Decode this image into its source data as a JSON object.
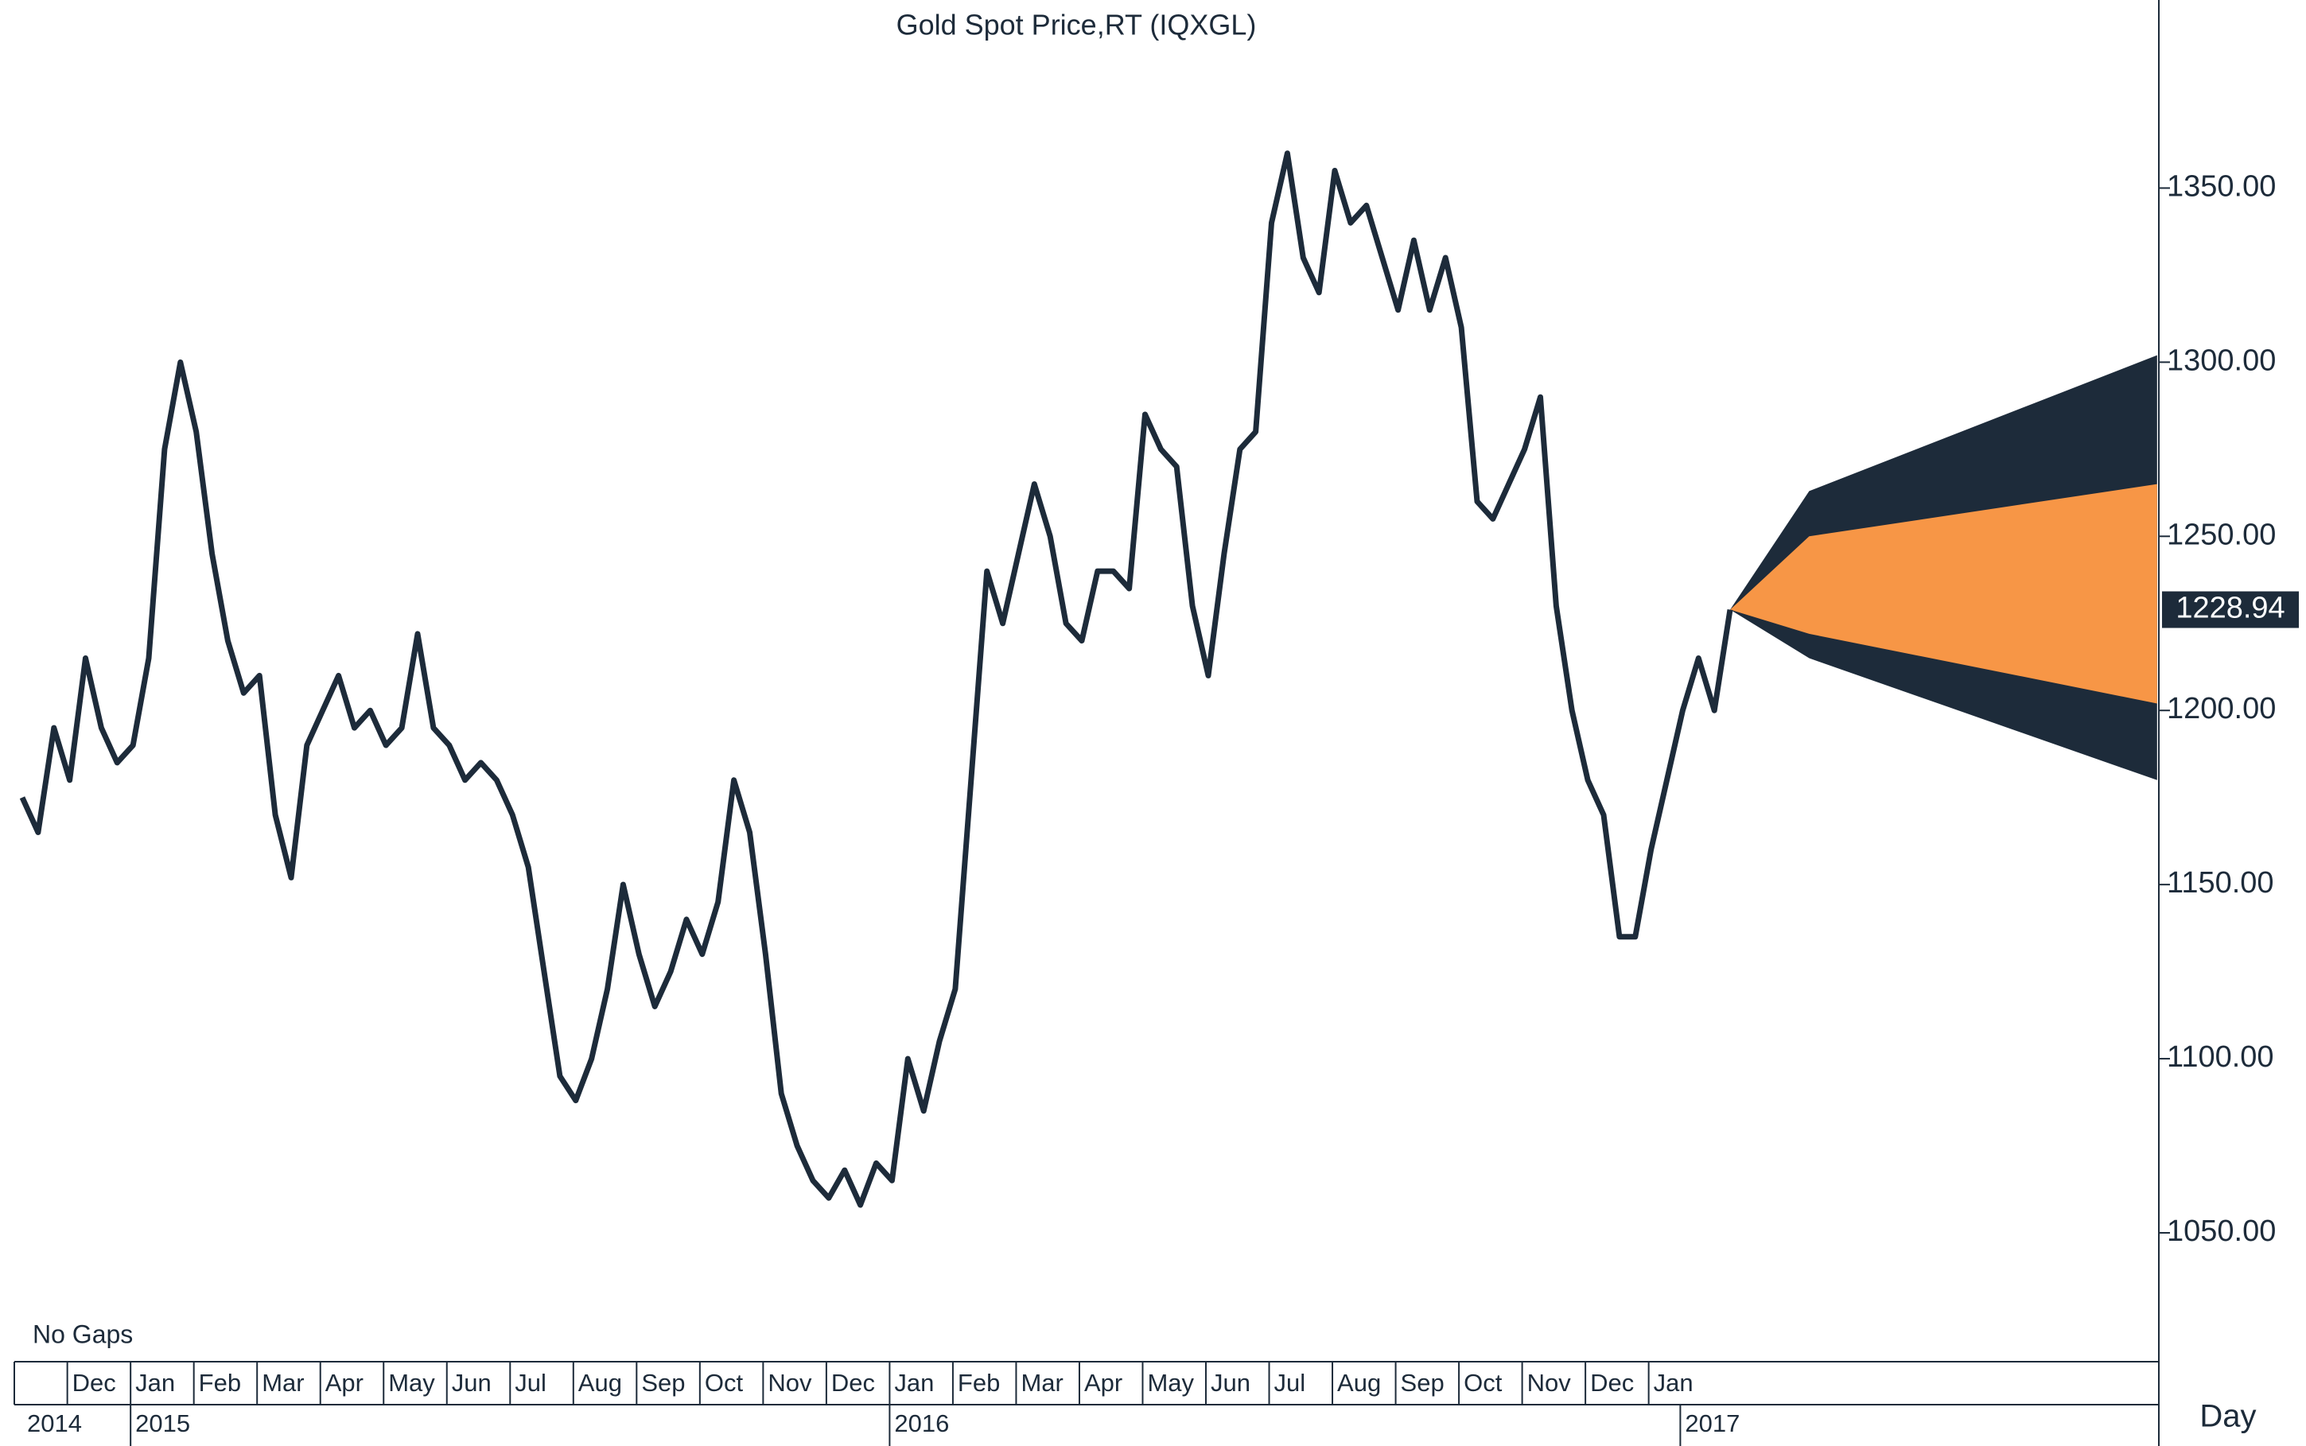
{
  "chart_data": {
    "type": "line",
    "title": "Gold Spot Price,RT (IQXGL)",
    "note": "No Gaps",
    "x_axis_label": "Day",
    "categories": [
      null,
      null,
      null,
      "Dec",
      null,
      null,
      null,
      "Jan",
      null,
      null,
      null,
      "Feb",
      null,
      null,
      null,
      "Mar",
      null,
      null,
      null,
      "Apr",
      null,
      null,
      null,
      "May",
      null,
      null,
      null,
      "Jun",
      null,
      null,
      null,
      "Jul",
      null,
      null,
      null,
      "Aug",
      null,
      null,
      null,
      "Sep",
      null,
      null,
      null,
      "Oct",
      null,
      null,
      null,
      "Nov",
      null,
      null,
      null,
      "Dec",
      null,
      null,
      null,
      "Jan",
      null,
      null,
      null,
      "Feb",
      null,
      null,
      null,
      "Mar",
      null,
      null,
      null,
      "Apr",
      null,
      null,
      null,
      "May",
      null,
      null,
      null,
      "Jun",
      null,
      null,
      null,
      "Jul",
      null,
      null,
      null,
      "Aug",
      null,
      null,
      null,
      "Sep",
      null,
      null,
      null,
      "Oct",
      null,
      null,
      null,
      "Nov",
      null,
      null,
      null,
      "Dec",
      null,
      null,
      null,
      "Jan",
      null,
      null,
      null,
      null,
      null,
      null,
      null,
      null,
      null,
      null,
      null,
      null,
      null,
      null,
      null,
      null,
      null,
      null,
      null,
      null,
      null,
      null,
      null,
      null,
      null,
      null,
      null,
      null,
      null,
      null,
      null,
      null
    ],
    "years": [
      "2014",
      null,
      null,
      null,
      null,
      null,
      null,
      "2015",
      null,
      null,
      null,
      null,
      null,
      null,
      null,
      null,
      null,
      null,
      null,
      null,
      null,
      null,
      null,
      null,
      null,
      null,
      null,
      null,
      null,
      null,
      null,
      null,
      null,
      null,
      null,
      null,
      null,
      null,
      null,
      null,
      null,
      null,
      null,
      null,
      null,
      null,
      null,
      null,
      null,
      null,
      null,
      null,
      null,
      null,
      null,
      "2016",
      null,
      null,
      null,
      null,
      null,
      null,
      null,
      null,
      null,
      null,
      null,
      null,
      null,
      null,
      null,
      null,
      null,
      null,
      null,
      null,
      null,
      null,
      null,
      null,
      null,
      null,
      null,
      null,
      null,
      null,
      null,
      null,
      null,
      null,
      null,
      null,
      null,
      null,
      null,
      null,
      null,
      null,
      null,
      null,
      null,
      null,
      null,
      null,
      null,
      "2017",
      null,
      null,
      null,
      null,
      null,
      null,
      null,
      null,
      null,
      null,
      null,
      null,
      null,
      null,
      null,
      null,
      null,
      null,
      null,
      null,
      null,
      null,
      null,
      null,
      null,
      null,
      null,
      null,
      null,
      null,
      null,
      null
    ],
    "series": [
      {
        "color": "#1d2b3a",
        "values": [
          1175,
          1165,
          1195,
          1180,
          1215,
          1195,
          1185,
          1190,
          1215,
          1275,
          1300,
          1280,
          1245,
          1220,
          1205,
          1210,
          1170,
          1152,
          1190,
          1200,
          1210,
          1195,
          1200,
          1190,
          1195,
          1222,
          1195,
          1190,
          1180,
          1185,
          1180,
          1170,
          1155,
          1125,
          1095,
          1088,
          1100,
          1120,
          1150,
          1130,
          1115,
          1125,
          1140,
          1130,
          1145,
          1180,
          1165,
          1130,
          1090,
          1075,
          1065,
          1060,
          1068,
          1058,
          1070,
          1065,
          1100,
          1085,
          1105,
          1120,
          1180,
          1240,
          1225,
          1245,
          1265,
          1250,
          1225,
          1220,
          1240,
          1240,
          1235,
          1285,
          1275,
          1270,
          1230,
          1210,
          1245,
          1275,
          1280,
          1340,
          1360,
          1330,
          1320,
          1355,
          1340,
          1345,
          1330,
          1315,
          1335,
          1315,
          1330,
          1310,
          1260,
          1255,
          1265,
          1275,
          1290,
          1230,
          1200,
          1180,
          1170,
          1135,
          1135,
          1160,
          1180,
          1200,
          1215,
          1200,
          1228.94,
          null,
          null,
          null,
          null,
          null,
          null,
          null,
          null,
          null,
          null,
          null,
          null,
          null,
          null,
          null,
          null,
          null,
          null,
          null,
          null,
          null,
          null,
          null,
          null,
          null,
          null,
          null
        ]
      }
    ],
    "bands": [
      {
        "color": "#1d2b3a",
        "upper": [
          null,
          null,
          null,
          null,
          null,
          null,
          null,
          null,
          null,
          null,
          null,
          null,
          null,
          null,
          null,
          null,
          null,
          null,
          null,
          null,
          null,
          null,
          null,
          null,
          null,
          null,
          null,
          null,
          null,
          null,
          null,
          null,
          null,
          null,
          null,
          null,
          null,
          null,
          null,
          null,
          null,
          null,
          null,
          null,
          null,
          null,
          null,
          null,
          null,
          null,
          null,
          null,
          null,
          null,
          null,
          null,
          null,
          null,
          null,
          null,
          null,
          null,
          null,
          null,
          null,
          null,
          null,
          null,
          null,
          null,
          null,
          null,
          null,
          null,
          null,
          null,
          null,
          null,
          null,
          null,
          null,
          null,
          null,
          null,
          null,
          null,
          null,
          null,
          null,
          null,
          null,
          null,
          null,
          null,
          null,
          null,
          null,
          null,
          null,
          null,
          null,
          null,
          null,
          null,
          null,
          null,
          null,
          null,
          1228.94,
          null,
          null,
          null,
          null,
          1263,
          null,
          null,
          null,
          null,
          null,
          null,
          null,
          null,
          null,
          null,
          null,
          null,
          null,
          null,
          null,
          null,
          null,
          null,
          null,
          null,
          null,
          1302
        ],
        "lower": [
          null,
          null,
          null,
          null,
          null,
          null,
          null,
          null,
          null,
          null,
          null,
          null,
          null,
          null,
          null,
          null,
          null,
          null,
          null,
          null,
          null,
          null,
          null,
          null,
          null,
          null,
          null,
          null,
          null,
          null,
          null,
          null,
          null,
          null,
          null,
          null,
          null,
          null,
          null,
          null,
          null,
          null,
          null,
          null,
          null,
          null,
          null,
          null,
          null,
          null,
          null,
          null,
          null,
          null,
          null,
          null,
          null,
          null,
          null,
          null,
          null,
          null,
          null,
          null,
          null,
          null,
          null,
          null,
          null,
          null,
          null,
          null,
          null,
          null,
          null,
          null,
          null,
          null,
          null,
          null,
          null,
          null,
          null,
          null,
          null,
          null,
          null,
          null,
          null,
          null,
          null,
          null,
          null,
          null,
          null,
          null,
          null,
          null,
          null,
          null,
          null,
          null,
          null,
          null,
          null,
          null,
          null,
          null,
          1228.94,
          null,
          null,
          null,
          null,
          1215,
          null,
          null,
          null,
          null,
          null,
          null,
          null,
          null,
          null,
          null,
          null,
          null,
          null,
          null,
          null,
          null,
          null,
          null,
          null,
          null,
          null,
          1180
        ]
      },
      {
        "color": "#f79646",
        "upper": [
          null,
          null,
          null,
          null,
          null,
          null,
          null,
          null,
          null,
          null,
          null,
          null,
          null,
          null,
          null,
          null,
          null,
          null,
          null,
          null,
          null,
          null,
          null,
          null,
          null,
          null,
          null,
          null,
          null,
          null,
          null,
          null,
          null,
          null,
          null,
          null,
          null,
          null,
          null,
          null,
          null,
          null,
          null,
          null,
          null,
          null,
          null,
          null,
          null,
          null,
          null,
          null,
          null,
          null,
          null,
          null,
          null,
          null,
          null,
          null,
          null,
          null,
          null,
          null,
          null,
          null,
          null,
          null,
          null,
          null,
          null,
          null,
          null,
          null,
          null,
          null,
          null,
          null,
          null,
          null,
          null,
          null,
          null,
          null,
          null,
          null,
          null,
          null,
          null,
          null,
          null,
          null,
          null,
          null,
          null,
          null,
          null,
          null,
          null,
          null,
          null,
          null,
          null,
          null,
          null,
          null,
          null,
          null,
          1228.94,
          null,
          null,
          null,
          null,
          1250,
          null,
          null,
          null,
          null,
          null,
          null,
          null,
          null,
          null,
          null,
          null,
          null,
          null,
          null,
          null,
          null,
          null,
          null,
          null,
          null,
          null,
          1265
        ],
        "lower": [
          null,
          null,
          null,
          null,
          null,
          null,
          null,
          null,
          null,
          null,
          null,
          null,
          null,
          null,
          null,
          null,
          null,
          null,
          null,
          null,
          null,
          null,
          null,
          null,
          null,
          null,
          null,
          null,
          null,
          null,
          null,
          null,
          null,
          null,
          null,
          null,
          null,
          null,
          null,
          null,
          null,
          null,
          null,
          null,
          null,
          null,
          null,
          null,
          null,
          null,
          null,
          null,
          null,
          null,
          null,
          null,
          null,
          null,
          null,
          null,
          null,
          null,
          null,
          null,
          null,
          null,
          null,
          null,
          null,
          null,
          null,
          null,
          null,
          null,
          null,
          null,
          null,
          null,
          null,
          null,
          null,
          null,
          null,
          null,
          null,
          null,
          null,
          null,
          null,
          null,
          null,
          null,
          null,
          null,
          null,
          null,
          null,
          null,
          null,
          null,
          null,
          null,
          null,
          null,
          null,
          null,
          null,
          null,
          1228.94,
          null,
          null,
          null,
          null,
          1222,
          null,
          null,
          null,
          null,
          null,
          null,
          null,
          null,
          null,
          null,
          null,
          null,
          null,
          null,
          null,
          null,
          null,
          null,
          null,
          null,
          null,
          1202
        ]
      }
    ],
    "ylim": [
      1013,
      1404
    ],
    "yticks": [
      {
        "value": 1050,
        "label": "1050.00"
      },
      {
        "value": 1100,
        "label": "1100.00"
      },
      {
        "value": 1150,
        "label": "1150.00"
      },
      {
        "value": 1200,
        "label": "1200.00"
      },
      {
        "value": 1250,
        "label": "1250.00"
      },
      {
        "value": 1300,
        "label": "1300.00"
      },
      {
        "value": 1350,
        "label": "1350.00"
      }
    ],
    "grid": false,
    "last_value_color": "#1d2b3a"
  }
}
